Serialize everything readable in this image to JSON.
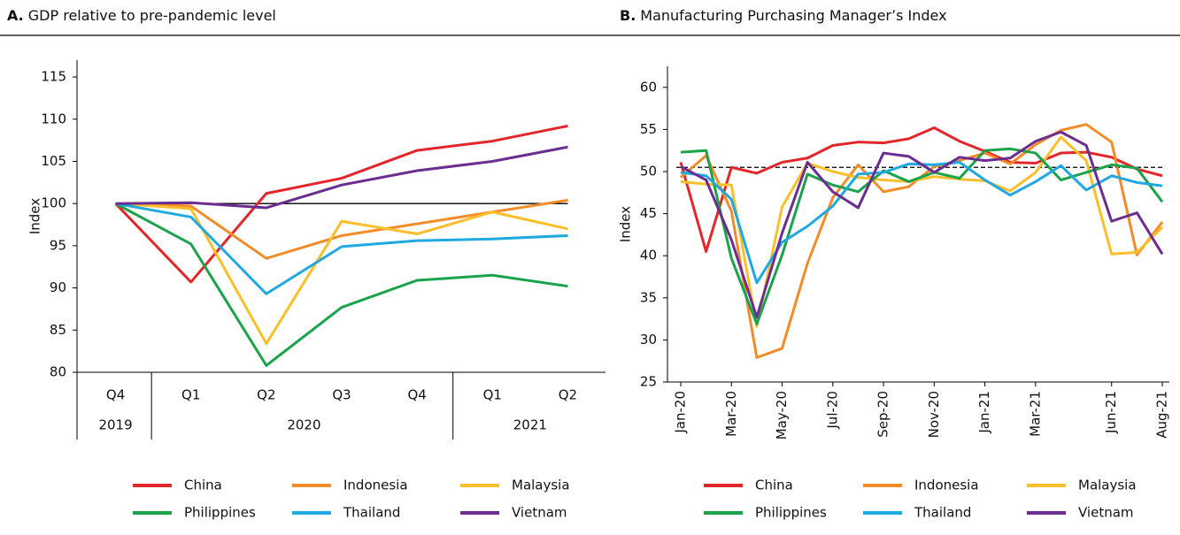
{
  "chart_data": [
    {
      "type": "line",
      "title_prefix": "A.",
      "title": "GDP relative to pre-pandemic level",
      "y_label": "Index",
      "categories": [
        "Q4",
        "Q1",
        "Q2",
        "Q3",
        "Q4",
        "Q1",
        "Q2"
      ],
      "year_groups": [
        {
          "label": "2019",
          "span": 1
        },
        {
          "label": "2020",
          "span": 4
        },
        {
          "label": "2021",
          "span": 2
        }
      ],
      "ylim": [
        80,
        117
      ],
      "yticks": [
        80,
        85,
        90,
        95,
        100,
        105,
        110,
        115
      ],
      "reference_line": {
        "value": 100,
        "style": "solid"
      },
      "series": [
        {
          "name": "China",
          "color": "#e3262a",
          "values": [
            100,
            90.7,
            101.2,
            103,
            106.3,
            107.4,
            109.2
          ]
        },
        {
          "name": "Indonesia",
          "color": "#f28c28",
          "values": [
            100,
            99.7,
            93.5,
            96.2,
            97.6,
            99,
            100.4
          ]
        },
        {
          "name": "Malaysia",
          "color": "#fbbf2b",
          "values": [
            100,
            99.4,
            83.4,
            97.9,
            96.4,
            99,
            97
          ]
        },
        {
          "name": "Philippines",
          "color": "#1aa34a",
          "values": [
            100,
            95.2,
            80.8,
            87.7,
            90.9,
            91.5,
            90.2
          ]
        },
        {
          "name": "Thailand",
          "color": "#20a9e1",
          "values": [
            100,
            98.4,
            89.3,
            94.9,
            95.6,
            95.8,
            96.2
          ]
        },
        {
          "name": "Vietnam",
          "color": "#6b2d8f",
          "values": [
            100,
            100.1,
            99.5,
            102.2,
            103.9,
            105,
            106.7
          ]
        }
      ]
    },
    {
      "type": "line",
      "title_prefix": "B.",
      "title": "Manufacturing Purchasing Manager’s Index",
      "y_label": "Index",
      "categories": [
        "Jan-20",
        null,
        "Mar-20",
        null,
        "May-20",
        null,
        "Jul-20",
        null,
        "Sep-20",
        null,
        "Nov-20",
        null,
        "Jan-21",
        null,
        "Mar-21",
        null,
        null,
        "Jun-21",
        null,
        "Aug-21"
      ],
      "ylim": [
        25,
        62.5
      ],
      "yticks": [
        25,
        30,
        35,
        40,
        45,
        50,
        55,
        60
      ],
      "reference_line": {
        "value": 50.5,
        "style": "dashed"
      },
      "series": [
        {
          "name": "China",
          "color": "#e3262a",
          "values": [
            51.1,
            40.5,
            50.5,
            49.8,
            51.1,
            51.6,
            53.1,
            53.5,
            53.4,
            53.9,
            55.2,
            53.6,
            52.4,
            51.1,
            51.0,
            52.2,
            52.3,
            51.7,
            50.3,
            49.5
          ]
        },
        {
          "name": "Indonesia",
          "color": "#f28c28",
          "values": [
            49.3,
            51.9,
            45.3,
            27.9,
            29.0,
            39.1,
            46.9,
            50.8,
            47.6,
            48.2,
            50.6,
            51.3,
            52.2,
            50.9,
            53.2,
            54.9,
            55.6,
            53.5,
            40.1,
            44.0
          ]
        },
        {
          "name": "Malaysia",
          "color": "#fbbf2b",
          "values": [
            48.8,
            48.5,
            48.4,
            31.6,
            45.8,
            51.0,
            50.0,
            49.3,
            49.0,
            48.8,
            49.4,
            49.1,
            48.9,
            47.7,
            49.9,
            54.1,
            51.3,
            40.2,
            40.4,
            43.4
          ]
        },
        {
          "name": "Philippines",
          "color": "#1aa34a",
          "values": [
            52.3,
            52.5,
            39.7,
            31.9,
            40.1,
            49.7,
            48.4,
            47.6,
            50.1,
            48.8,
            49.9,
            49.2,
            52.5,
            52.7,
            52.2,
            49.0,
            49.9,
            50.8,
            50.4,
            46.4
          ]
        },
        {
          "name": "Thailand",
          "color": "#20a9e1",
          "values": [
            49.9,
            49.5,
            46.7,
            36.8,
            41.6,
            43.5,
            45.9,
            49.7,
            49.9,
            50.9,
            50.8,
            51.1,
            49.0,
            47.2,
            48.8,
            50.7,
            47.8,
            49.5,
            48.7,
            48.3
          ]
        },
        {
          "name": "Vietnam",
          "color": "#6b2d8f",
          "values": [
            50.6,
            49.0,
            41.9,
            32.7,
            42.7,
            51.1,
            47.6,
            45.7,
            52.2,
            51.8,
            49.9,
            51.7,
            51.3,
            51.6,
            53.6,
            54.7,
            53.1,
            44.1,
            45.1,
            40.2
          ]
        }
      ]
    }
  ]
}
